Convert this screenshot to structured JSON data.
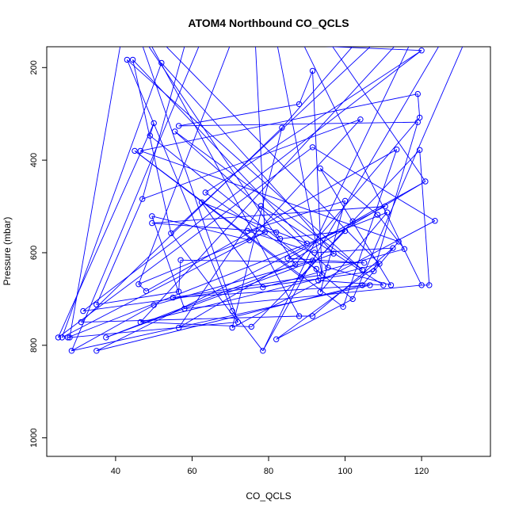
{
  "chart_data": {
    "type": "scatter",
    "title": "ATOM4 Northbound CO_QCLS",
    "xlabel": "CO_QCLS",
    "ylabel": "Pressure (mbar)",
    "xlim": [
      22,
      138
    ],
    "ylim": [
      1040,
      155
    ],
    "y_reversed": true,
    "x_ticks": [
      40,
      60,
      80,
      100,
      120
    ],
    "y_ticks": [
      200,
      400,
      600,
      800,
      1000
    ],
    "grid": false,
    "legend": "none",
    "colors": {
      "series": "#0000ff",
      "axis": "#000000"
    },
    "series": [
      {
        "values": [
          {
            "x": 28.5,
            "y": 812
          },
          {
            "x": 35.0,
            "y": 812
          },
          {
            "x": 25.0,
            "y": 783
          },
          {
            "x": 26.0,
            "y": 783
          },
          {
            "x": 27.5,
            "y": 783
          },
          {
            "x": 28.0,
            "y": 783
          },
          {
            "x": 37.5,
            "y": 783
          },
          {
            "x": 31.0,
            "y": 750
          },
          {
            "x": 46.5,
            "y": 750
          },
          {
            "x": 31.5,
            "y": 726
          },
          {
            "x": 35.0,
            "y": 712
          },
          {
            "x": 50.0,
            "y": 713
          },
          {
            "x": 48.0,
            "y": 683
          },
          {
            "x": 46.0,
            "y": 668
          },
          {
            "x": 55.0,
            "y": 697
          },
          {
            "x": 58.0,
            "y": 721
          },
          {
            "x": 56.5,
            "y": 762
          },
          {
            "x": 70.5,
            "y": 762
          },
          {
            "x": 72.0,
            "y": 750
          },
          {
            "x": 75.5,
            "y": 760
          },
          {
            "x": 70.5,
            "y": 726
          },
          {
            "x": 78.5,
            "y": 812
          },
          {
            "x": 82.0,
            "y": 787
          },
          {
            "x": 78.5,
            "y": 675
          },
          {
            "x": 74.5,
            "y": 553
          },
          {
            "x": 75.0,
            "y": 573
          },
          {
            "x": 79.0,
            "y": 556
          },
          {
            "x": 78.0,
            "y": 499
          },
          {
            "x": 82.0,
            "y": 556
          },
          {
            "x": 83.0,
            "y": 570
          },
          {
            "x": 85.0,
            "y": 612
          },
          {
            "x": 87.0,
            "y": 625
          },
          {
            "x": 88.5,
            "y": 653
          },
          {
            "x": 90.0,
            "y": 580
          },
          {
            "x": 91.5,
            "y": 617
          },
          {
            "x": 92.0,
            "y": 600
          },
          {
            "x": 92.5,
            "y": 635
          },
          {
            "x": 93.0,
            "y": 660
          },
          {
            "x": 93.5,
            "y": 685
          },
          {
            "x": 94.0,
            "y": 648
          },
          {
            "x": 95.5,
            "y": 632
          },
          {
            "x": 97.0,
            "y": 602
          },
          {
            "x": 100.0,
            "y": 553
          },
          {
            "x": 102.0,
            "y": 532
          },
          {
            "x": 88.0,
            "y": 737
          },
          {
            "x": 91.5,
            "y": 737
          },
          {
            "x": 99.5,
            "y": 717
          },
          {
            "x": 102.0,
            "y": 700
          },
          {
            "x": 104.5,
            "y": 670
          },
          {
            "x": 106.5,
            "y": 670
          },
          {
            "x": 110.0,
            "y": 670
          },
          {
            "x": 112.0,
            "y": 670
          },
          {
            "x": 120.0,
            "y": 670
          },
          {
            "x": 122.0,
            "y": 670
          },
          {
            "x": 104.5,
            "y": 637
          },
          {
            "x": 105.0,
            "y": 622
          },
          {
            "x": 107.5,
            "y": 640
          },
          {
            "x": 109.0,
            "y": 624
          },
          {
            "x": 112.5,
            "y": 590
          },
          {
            "x": 114.0,
            "y": 576
          },
          {
            "x": 115.5,
            "y": 592
          },
          {
            "x": 108.5,
            "y": 518
          },
          {
            "x": 110.5,
            "y": 500
          },
          {
            "x": 111.0,
            "y": 513
          },
          {
            "x": 123.5,
            "y": 531
          },
          {
            "x": 121.0,
            "y": 446
          },
          {
            "x": 119.5,
            "y": 378
          },
          {
            "x": 119.0,
            "y": 318
          },
          {
            "x": 119.5,
            "y": 308
          },
          {
            "x": 119.0,
            "y": 257
          },
          {
            "x": 120.0,
            "y": 163
          },
          {
            "x": 113.5,
            "y": 377
          },
          {
            "x": 104.0,
            "y": 312
          },
          {
            "x": 100.0,
            "y": 488
          },
          {
            "x": 93.5,
            "y": 418
          },
          {
            "x": 91.5,
            "y": 372
          },
          {
            "x": 91.5,
            "y": 207
          },
          {
            "x": 88.0,
            "y": 279
          },
          {
            "x": 83.5,
            "y": 330
          },
          {
            "x": 43.0,
            "y": 183
          },
          {
            "x": 44.5,
            "y": 183
          },
          {
            "x": 45.0,
            "y": 380
          },
          {
            "x": 46.5,
            "y": 380
          },
          {
            "x": 47.0,
            "y": 484
          },
          {
            "x": 49.0,
            "y": 347
          },
          {
            "x": 50.0,
            "y": 320
          },
          {
            "x": 49.5,
            "y": 521
          },
          {
            "x": 49.5,
            "y": 536
          },
          {
            "x": 52.0,
            "y": 190
          },
          {
            "x": 55.5,
            "y": 338
          },
          {
            "x": 56.5,
            "y": 326
          },
          {
            "x": 54.5,
            "y": 558
          },
          {
            "x": 57.0,
            "y": 616
          },
          {
            "x": 56.5,
            "y": 684
          },
          {
            "x": 62.5,
            "y": 491
          },
          {
            "x": 63.5,
            "y": 470
          }
        ]
      }
    ]
  }
}
